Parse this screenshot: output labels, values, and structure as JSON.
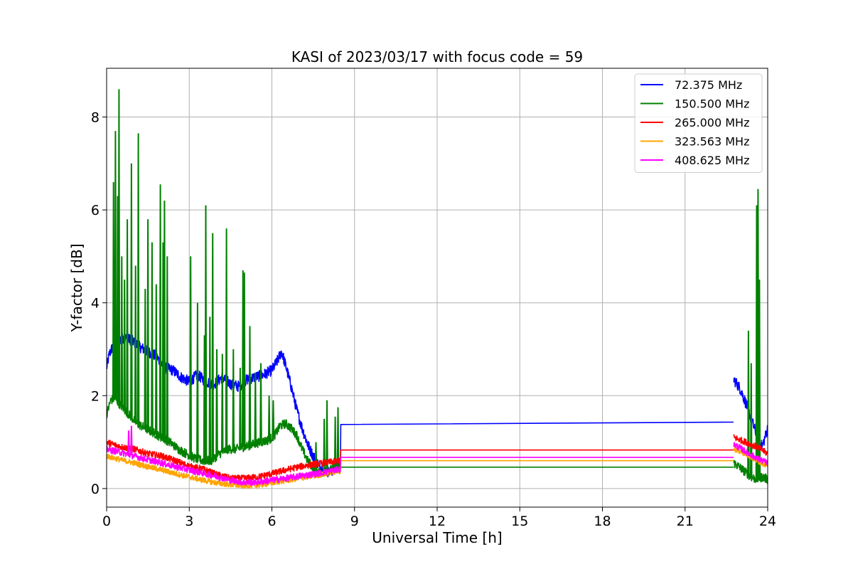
{
  "chart_data": {
    "type": "line",
    "title": "KASI of 2023/03/17 with focus code = 59",
    "xlabel": "Universal Time [h]",
    "ylabel": "Y-factor [dB]",
    "xlim": [
      0,
      24
    ],
    "ylim": [
      -0.4,
      9.05
    ],
    "xticks": [
      0,
      3,
      6,
      9,
      12,
      15,
      18,
      21,
      24
    ],
    "yticks": [
      0,
      2,
      4,
      6,
      8
    ],
    "grid": true,
    "legend_position": "top-right",
    "series": [
      {
        "name": "72.375 MHz",
        "legend_label": "  72.375 MHz",
        "color": "#0000ff",
        "x": [
          0,
          0.1,
          0.3,
          0.6,
          0.9,
          1.2,
          1.5,
          1.8,
          2.1,
          2.4,
          2.7,
          3.0,
          3.3,
          3.6,
          3.9,
          4.2,
          4.5,
          4.8,
          5.1,
          5.4,
          5.7,
          6.0,
          6.2,
          6.35,
          6.5,
          6.7,
          6.9,
          7.1,
          7.3,
          7.5,
          7.7,
          7.9,
          8.1,
          8.3,
          8.49,
          8.51,
          22.75,
          22.77,
          23.0,
          23.2,
          23.4,
          23.6,
          23.8,
          24.0
        ],
        "y": [
          2.6,
          2.9,
          3.15,
          3.25,
          3.2,
          3.05,
          2.95,
          2.85,
          2.6,
          2.55,
          2.4,
          2.3,
          2.45,
          2.3,
          2.25,
          2.4,
          2.25,
          2.2,
          2.35,
          2.4,
          2.45,
          2.55,
          2.75,
          2.95,
          2.65,
          2.2,
          1.7,
          1.3,
          0.95,
          0.7,
          0.5,
          0.4,
          0.35,
          0.45,
          0.55,
          1.38,
          1.43,
          2.35,
          2.15,
          1.85,
          1.5,
          1.15,
          0.9,
          1.3
        ]
      },
      {
        "name": "150.500 MHz",
        "legend_label": "150.500 MHz",
        "color": "#008000",
        "x": [
          0,
          0.15,
          0.3,
          0.5,
          0.8,
          1.1,
          1.4,
          1.7,
          2.0,
          2.3,
          2.6,
          2.9,
          3.2,
          3.5,
          3.8,
          4.1,
          4.4,
          4.7,
          5.0,
          5.3,
          5.6,
          5.9,
          6.1,
          6.3,
          6.5,
          6.7,
          6.9,
          7.1,
          7.3,
          7.5,
          7.7,
          7.9,
          8.1,
          8.3,
          8.49,
          8.51,
          22.75,
          22.77,
          23.0,
          23.2,
          23.4,
          23.6,
          23.8,
          24.0
        ],
        "y": [
          1.6,
          1.9,
          1.95,
          1.8,
          1.6,
          1.4,
          1.3,
          1.2,
          1.1,
          1.0,
          0.85,
          0.75,
          0.65,
          0.6,
          0.6,
          0.75,
          0.85,
          0.85,
          0.9,
          0.95,
          1.0,
          1.05,
          1.15,
          1.35,
          1.4,
          1.3,
          1.15,
          0.85,
          0.6,
          0.45,
          0.35,
          0.35,
          0.4,
          0.45,
          0.5,
          0.46,
          0.46,
          0.55,
          0.45,
          0.35,
          0.25,
          0.2,
          0.25,
          0.2
        ],
        "spikes": [
          [
            0.25,
            6.6
          ],
          [
            0.32,
            7.7
          ],
          [
            0.4,
            6.3
          ],
          [
            0.45,
            8.6
          ],
          [
            0.55,
            5.0
          ],
          [
            0.65,
            4.5
          ],
          [
            0.75,
            5.8
          ],
          [
            0.9,
            7.0
          ],
          [
            1.05,
            4.8
          ],
          [
            1.15,
            7.65
          ],
          [
            1.4,
            4.3
          ],
          [
            1.5,
            5.8
          ],
          [
            1.65,
            5.3
          ],
          [
            1.8,
            4.4
          ],
          [
            1.95,
            6.55
          ],
          [
            2.05,
            5.3
          ],
          [
            2.1,
            6.2
          ],
          [
            2.2,
            5.0
          ],
          [
            3.05,
            5.0
          ],
          [
            3.3,
            4.0
          ],
          [
            3.55,
            3.3
          ],
          [
            3.6,
            6.1
          ],
          [
            3.75,
            3.7
          ],
          [
            3.85,
            5.5
          ],
          [
            4.0,
            3.0
          ],
          [
            4.2,
            2.9
          ],
          [
            4.35,
            5.6
          ],
          [
            4.6,
            3.0
          ],
          [
            4.85,
            2.6
          ],
          [
            4.95,
            4.7
          ],
          [
            5.0,
            4.65
          ],
          [
            5.2,
            3.5
          ],
          [
            5.4,
            2.5
          ],
          [
            5.6,
            2.7
          ],
          [
            5.9,
            2.0
          ],
          [
            6.05,
            1.9
          ],
          [
            7.6,
            1.0
          ],
          [
            7.9,
            1.5
          ],
          [
            8.0,
            1.9
          ],
          [
            8.3,
            1.55
          ],
          [
            8.4,
            1.75
          ],
          [
            23.3,
            3.4
          ],
          [
            23.4,
            2.7
          ],
          [
            23.6,
            6.1
          ],
          [
            23.65,
            6.45
          ],
          [
            23.7,
            4.5
          ]
        ]
      },
      {
        "name": "265.000 MHz",
        "legend_label": "265.000 MHz",
        "color": "#ff0000",
        "x": [
          0,
          0.5,
          1.0,
          1.5,
          2.0,
          2.5,
          3.0,
          3.5,
          4.0,
          4.5,
          5.0,
          5.5,
          6.0,
          6.5,
          7.0,
          7.5,
          8.0,
          8.49,
          8.51,
          22.75,
          22.77,
          23.2,
          23.6,
          24.0
        ],
        "y": [
          1.0,
          0.9,
          0.85,
          0.75,
          0.7,
          0.6,
          0.48,
          0.42,
          0.3,
          0.22,
          0.22,
          0.25,
          0.32,
          0.4,
          0.47,
          0.52,
          0.56,
          0.6,
          0.83,
          0.83,
          1.1,
          1.0,
          0.9,
          0.75
        ]
      },
      {
        "name": "323.563 MHz",
        "legend_label": "323.563 MHz",
        "color": "#ffa500",
        "x": [
          0,
          0.5,
          1.0,
          1.5,
          2.0,
          2.5,
          3.0,
          3.5,
          4.0,
          4.5,
          5.0,
          5.5,
          6.0,
          6.5,
          7.0,
          7.5,
          8.0,
          8.49,
          8.51,
          22.75,
          22.77,
          23.2,
          23.6,
          24.0
        ],
        "y": [
          0.7,
          0.62,
          0.55,
          0.47,
          0.4,
          0.32,
          0.25,
          0.18,
          0.12,
          0.08,
          0.06,
          0.07,
          0.12,
          0.17,
          0.22,
          0.27,
          0.32,
          0.38,
          0.6,
          0.6,
          0.85,
          0.75,
          0.6,
          0.5
        ]
      },
      {
        "name": "408.625 MHz",
        "legend_label": "408.625 MHz",
        "color": "#ff00ff",
        "x": [
          0,
          0.5,
          1.0,
          1.5,
          2.0,
          2.5,
          3.0,
          3.5,
          4.0,
          4.5,
          5.0,
          5.5,
          6.0,
          6.5,
          7.0,
          7.5,
          8.0,
          8.49,
          8.51,
          22.75,
          22.77,
          23.2,
          23.6,
          24.0
        ],
        "y": [
          0.85,
          0.78,
          0.7,
          0.62,
          0.55,
          0.47,
          0.4,
          0.33,
          0.26,
          0.18,
          0.13,
          0.14,
          0.18,
          0.22,
          0.27,
          0.31,
          0.36,
          0.42,
          0.67,
          0.67,
          0.95,
          0.8,
          0.65,
          0.55
        ],
        "spikes": [
          [
            0.8,
            1.25
          ],
          [
            0.9,
            1.35
          ]
        ]
      }
    ]
  }
}
